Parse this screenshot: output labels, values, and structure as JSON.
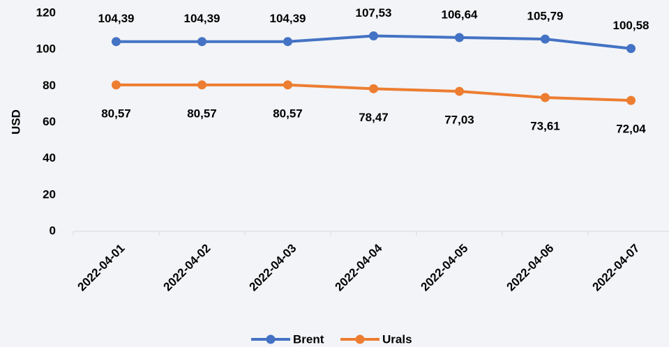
{
  "chart_data": {
    "type": "line",
    "y_label": "USD",
    "categories": [
      "2022-04-01",
      "2022-04-02",
      "2022-04-03",
      "2022-04-04",
      "2022-04-05",
      "2022-04-06",
      "2022-04-07"
    ],
    "series": [
      {
        "name": "Brent",
        "color": "#4472c4",
        "values": [
          104.39,
          104.39,
          104.39,
          107.53,
          106.64,
          105.79,
          100.58
        ],
        "value_labels": [
          "104,39",
          "104,39",
          "104,39",
          "107,53",
          "106,64",
          "105,79",
          "100,58"
        ],
        "label_position": "above"
      },
      {
        "name": "Urals",
        "color": "#ed7d31",
        "values": [
          80.57,
          80.57,
          80.57,
          78.47,
          77.03,
          73.61,
          72.04
        ],
        "value_labels": [
          "80,57",
          "80,57",
          "80,57",
          "78,47",
          "77,03",
          "73,61",
          "72,04"
        ],
        "label_position": "below"
      }
    ],
    "ylim": [
      0,
      120
    ],
    "yticks": [
      0,
      20,
      40,
      60,
      80,
      100,
      120
    ],
    "grid": false,
    "legend": "bottom"
  }
}
